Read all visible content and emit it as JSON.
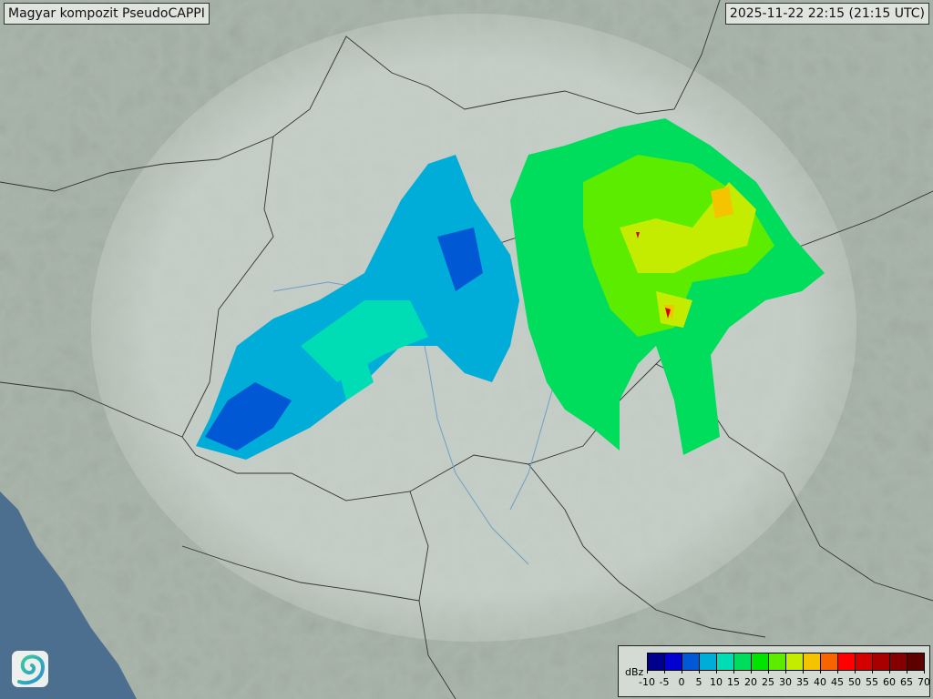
{
  "header": {
    "title": "Magyar kompozit  PseudoCAPPI",
    "timestamp": "2025-11-22 22:15 (21:15 UTC)"
  },
  "legend": {
    "unit": "dBz",
    "ticks": [
      "-10",
      "-5",
      "0",
      "5",
      "10",
      "15",
      "20",
      "25",
      "30",
      "35",
      "40",
      "45",
      "50",
      "55",
      "60",
      "65",
      "70"
    ],
    "colors": [
      "#00008c",
      "#0000d0",
      "#0058d4",
      "#00acd8",
      "#00dcb4",
      "#00dc5c",
      "#00e400",
      "#5cec00",
      "#c4ec00",
      "#f4c400",
      "#f86400",
      "#ff0000",
      "#d40000",
      "#a80000",
      "#840000",
      "#5c0000"
    ]
  },
  "logo": {
    "icon": "swirl-logo-icon"
  },
  "colors": {
    "land": "#a9b4aa",
    "sea": "#4d6f8f",
    "coverage": "#c9d3cb",
    "border": "#333333",
    "river": "#6f9fc7"
  }
}
